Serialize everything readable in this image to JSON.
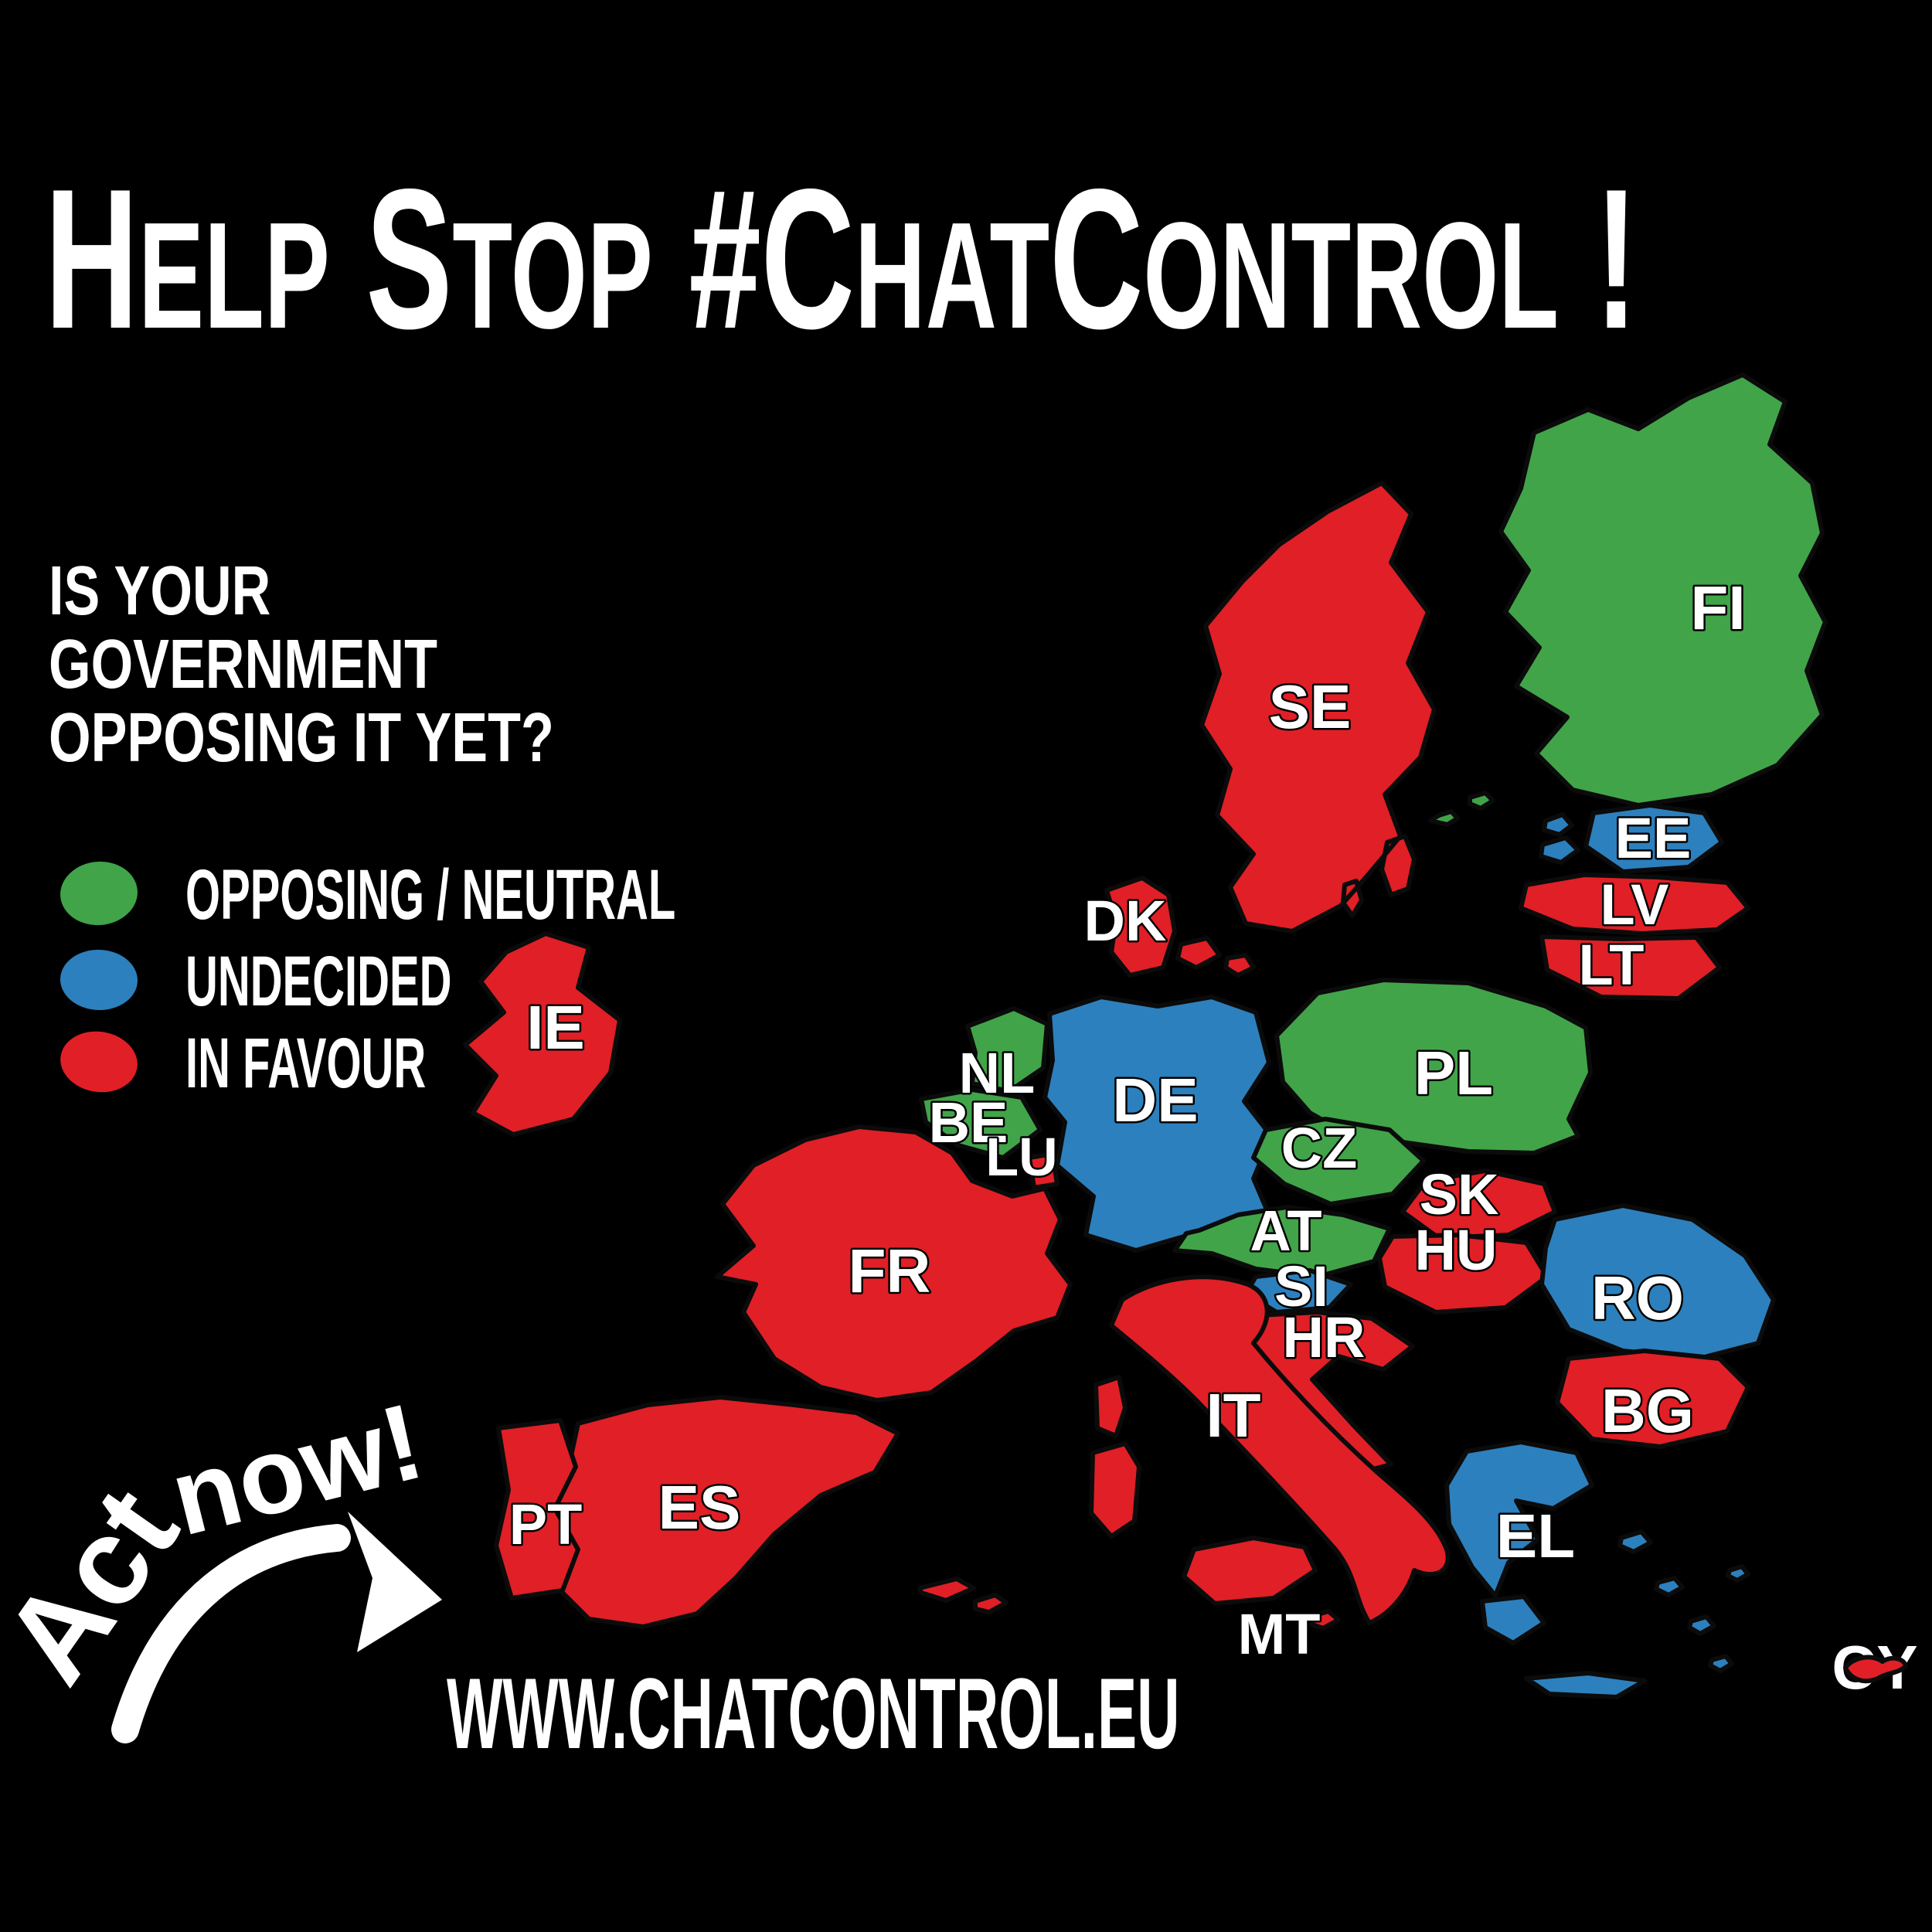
{
  "poster": {
    "background_color": "#000000",
    "title": "Help Stop #ChatControl !",
    "question_lines": [
      "IS YOUR",
      "GOVERNMENT",
      "OPPOSING IT YET?"
    ],
    "legend": {
      "items": [
        {
          "id": "opposing",
          "label": "OPPOSING / NEUTRAL",
          "color": "#41a449"
        },
        {
          "id": "undecided",
          "label": "UNDECIDED",
          "color": "#2c80bd"
        },
        {
          "id": "in_favour",
          "label": "IN FAVOUR",
          "color": "#e11f26"
        }
      ]
    },
    "call_to_action": {
      "word1": "Act",
      "word2": "now!"
    },
    "url": "WWW.CHATCONTROL.EU",
    "map": {
      "countries": [
        {
          "code": "FI",
          "status": "opposing"
        },
        {
          "code": "SE",
          "status": "in_favour"
        },
        {
          "code": "EE",
          "status": "undecided"
        },
        {
          "code": "LV",
          "status": "in_favour"
        },
        {
          "code": "LT",
          "status": "in_favour"
        },
        {
          "code": "DK",
          "status": "in_favour"
        },
        {
          "code": "IE",
          "status": "in_favour"
        },
        {
          "code": "NL",
          "status": "opposing"
        },
        {
          "code": "BE",
          "status": "opposing"
        },
        {
          "code": "LU",
          "status": "in_favour"
        },
        {
          "code": "DE",
          "status": "undecided"
        },
        {
          "code": "PL",
          "status": "opposing"
        },
        {
          "code": "CZ",
          "status": "opposing"
        },
        {
          "code": "SK",
          "status": "in_favour"
        },
        {
          "code": "AT",
          "status": "opposing"
        },
        {
          "code": "HU",
          "status": "in_favour"
        },
        {
          "code": "SI",
          "status": "undecided"
        },
        {
          "code": "HR",
          "status": "in_favour"
        },
        {
          "code": "FR",
          "status": "in_favour"
        },
        {
          "code": "IT",
          "status": "in_favour"
        },
        {
          "code": "ES",
          "status": "in_favour"
        },
        {
          "code": "PT",
          "status": "in_favour"
        },
        {
          "code": "RO",
          "status": "undecided"
        },
        {
          "code": "BG",
          "status": "in_favour"
        },
        {
          "code": "EL",
          "status": "undecided"
        },
        {
          "code": "MT",
          "status": "in_favour"
        },
        {
          "code": "CY",
          "status": "in_favour"
        }
      ]
    }
  }
}
